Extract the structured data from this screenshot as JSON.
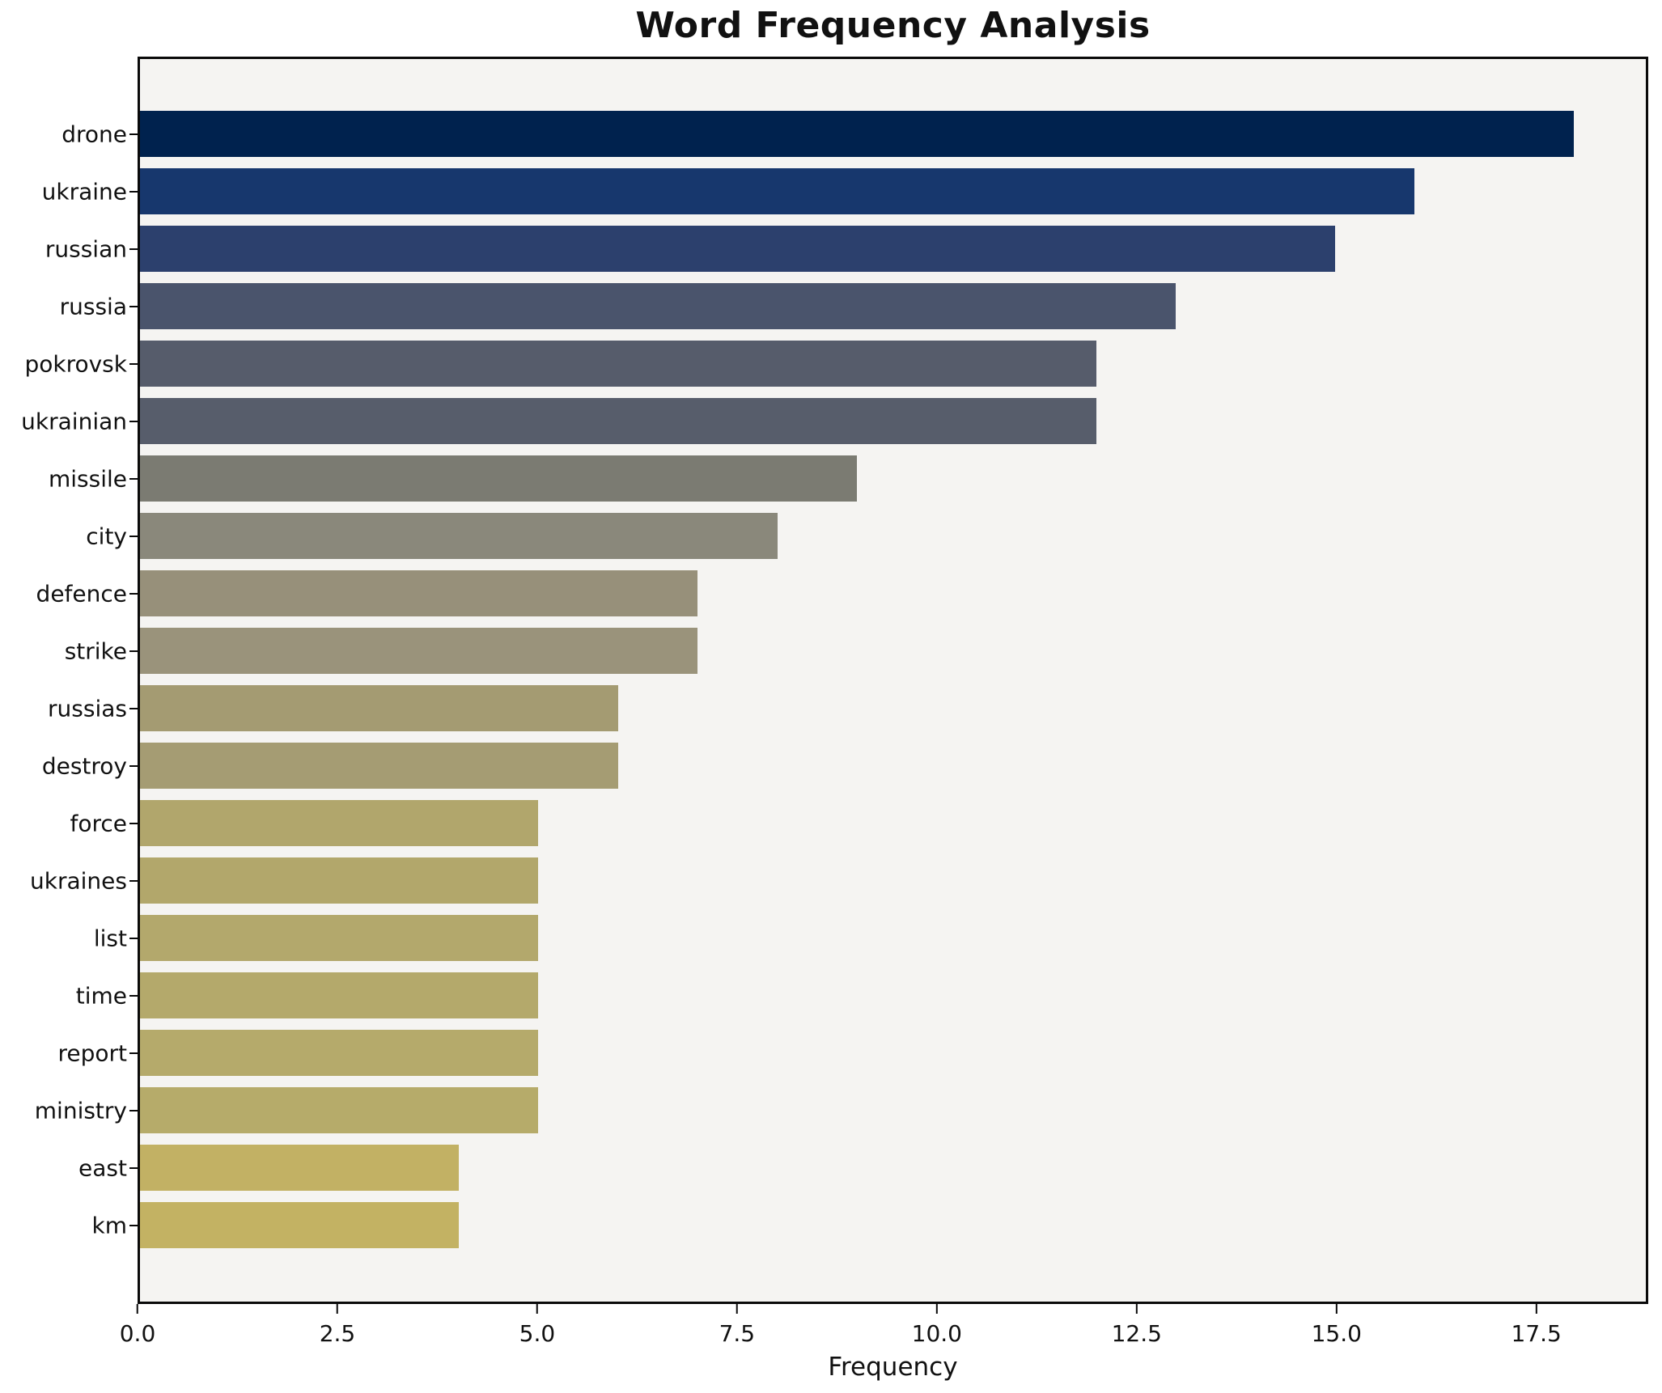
{
  "title": "Word Frequency Analysis",
  "chart_data": {
    "type": "bar",
    "orientation": "horizontal",
    "title": "Word Frequency Analysis",
    "xlabel": "Frequency",
    "ylabel": "",
    "categories": [
      "drone",
      "ukraine",
      "russian",
      "russia",
      "pokrovsk",
      "ukrainian",
      "missile",
      "city",
      "defence",
      "strike",
      "russias",
      "destroy",
      "force",
      "ukraines",
      "list",
      "time",
      "report",
      "ministry",
      "east",
      "km"
    ],
    "values": [
      18,
      16,
      15,
      13,
      12,
      12,
      9,
      8,
      7,
      7,
      6,
      6,
      5,
      5,
      5,
      5,
      5,
      5,
      4,
      4
    ],
    "bar_colors": [
      "#00224e",
      "#17376d",
      "#2c406d",
      "#4a546c",
      "#565c6b",
      "#575d6b",
      "#7b7b72",
      "#8a887b",
      "#97907a",
      "#9a937b",
      "#a49b72",
      "#a59c73",
      "#b1a66c",
      "#b2a76b",
      "#b3a86c",
      "#b4a96b",
      "#b5aa6b",
      "#b6ab6a",
      "#c2b164",
      "#c3b263"
    ],
    "xlim": [
      0,
      18.9
    ],
    "xticks": [
      0.0,
      2.5,
      5.0,
      7.5,
      10.0,
      12.5,
      15.0,
      17.5
    ],
    "xtick_labels": [
      "0.0",
      "2.5",
      "5.0",
      "7.5",
      "10.0",
      "12.5",
      "15.0",
      "17.5"
    ],
    "grid": false,
    "legend": null,
    "plot_bg": "#f5f4f2",
    "fig_bg": "#ffffff",
    "spine_color": "#0a0a0a"
  }
}
